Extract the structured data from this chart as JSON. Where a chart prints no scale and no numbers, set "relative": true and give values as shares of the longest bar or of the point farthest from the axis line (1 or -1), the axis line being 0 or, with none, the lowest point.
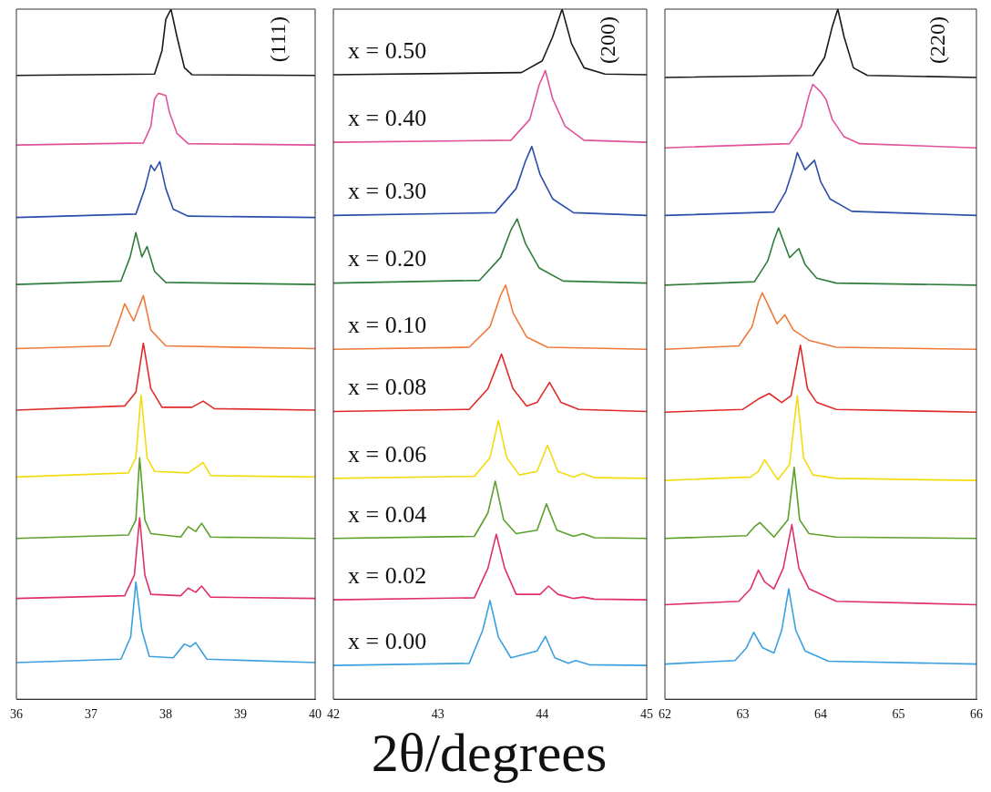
{
  "chart_data": [
    {
      "type": "line",
      "relative": true,
      "xlim": [
        36,
        40
      ],
      "xticks": [
        36,
        37,
        38,
        39,
        40
      ],
      "grid": false,
      "legend": false,
      "marker": "none",
      "line_style": "solid",
      "annotations": [
        "(111)"
      ],
      "series": [
        {
          "color": "#1a1a1a",
          "x": [
            36,
            37.85,
            37.95,
            38.0,
            38.07,
            38.15,
            38.25,
            38.35,
            40
          ],
          "values": [
            0.904,
            0.906,
            0.94,
            0.985,
            1.0,
            0.96,
            0.915,
            0.905,
            0.904
          ]
        },
        {
          "color": "#e0529a",
          "x": [
            36,
            37.7,
            37.8,
            37.85,
            37.9,
            38.0,
            38.05,
            38.15,
            38.3,
            40
          ],
          "values": [
            0.803,
            0.806,
            0.83,
            0.87,
            0.878,
            0.875,
            0.85,
            0.82,
            0.805,
            0.803
          ]
        },
        {
          "color": "#2a4fa8",
          "x": [
            36,
            37.6,
            37.72,
            37.8,
            37.85,
            37.92,
            38.0,
            38.1,
            38.3,
            40
          ],
          "values": [
            0.698,
            0.703,
            0.74,
            0.774,
            0.766,
            0.779,
            0.74,
            0.71,
            0.7,
            0.698
          ]
        },
        {
          "color": "#2e7d3a",
          "x": [
            36,
            37.4,
            37.52,
            37.6,
            37.68,
            37.75,
            37.85,
            38.0,
            40
          ],
          "values": [
            0.601,
            0.606,
            0.64,
            0.676,
            0.641,
            0.656,
            0.62,
            0.604,
            0.601
          ]
        },
        {
          "color": "#f07a3a",
          "x": [
            36,
            37.25,
            37.38,
            37.45,
            37.57,
            37.7,
            37.8,
            38.0,
            40
          ],
          "values": [
            0.508,
            0.512,
            0.55,
            0.573,
            0.548,
            0.585,
            0.535,
            0.512,
            0.508
          ]
        },
        {
          "color": "#e02a2a",
          "x": [
            36,
            37.45,
            37.6,
            37.7,
            37.8,
            37.95,
            38.35,
            38.5,
            38.65,
            40
          ],
          "values": [
            0.419,
            0.425,
            0.445,
            0.516,
            0.45,
            0.423,
            0.423,
            0.432,
            0.421,
            0.419
          ]
        },
        {
          "color": "#f2dc10",
          "x": [
            36,
            37.5,
            37.6,
            37.67,
            37.75,
            37.85,
            38.3,
            38.5,
            38.6,
            40
          ],
          "values": [
            0.322,
            0.328,
            0.35,
            0.441,
            0.35,
            0.33,
            0.328,
            0.343,
            0.324,
            0.322
          ]
        },
        {
          "color": "#5aa02a",
          "x": [
            36,
            37.5,
            37.6,
            37.65,
            37.72,
            37.8,
            38.2,
            38.3,
            38.4,
            38.48,
            38.6,
            40
          ],
          "values": [
            0.233,
            0.238,
            0.26,
            0.35,
            0.26,
            0.24,
            0.235,
            0.25,
            0.243,
            0.255,
            0.235,
            0.233
          ]
        },
        {
          "color": "#e0306a",
          "x": [
            36,
            37.45,
            37.58,
            37.65,
            37.72,
            37.8,
            38.2,
            38.3,
            38.4,
            38.48,
            38.6,
            40
          ],
          "values": [
            0.146,
            0.15,
            0.18,
            0.263,
            0.18,
            0.152,
            0.15,
            0.161,
            0.155,
            0.164,
            0.148,
            0.146
          ]
        },
        {
          "color": "#3aa0e0",
          "x": [
            36,
            37.4,
            37.53,
            37.6,
            37.68,
            37.78,
            38.1,
            38.25,
            38.33,
            38.4,
            38.55,
            40
          ],
          "values": [
            0.053,
            0.058,
            0.09,
            0.17,
            0.1,
            0.062,
            0.06,
            0.08,
            0.076,
            0.082,
            0.058,
            0.053
          ]
        }
      ]
    },
    {
      "type": "line",
      "relative": true,
      "xlim": [
        42,
        45
      ],
      "xticks": [
        42,
        43,
        44,
        45
      ],
      "grid": false,
      "legend": false,
      "marker": "none",
      "line_style": "solid",
      "xlabel": "2θ/degrees",
      "annotations": [
        "(200)"
      ],
      "series": [
        {
          "name": "x = 0.50",
          "color": "#1a1a1a",
          "x": [
            42,
            43.8,
            44.0,
            44.1,
            44.19,
            44.28,
            44.4,
            44.6,
            45
          ],
          "values": [
            0.905,
            0.908,
            0.925,
            0.96,
            1.0,
            0.95,
            0.915,
            0.906,
            0.905
          ]
        },
        {
          "name": "x = 0.40",
          "color": "#e0529a",
          "x": [
            42,
            43.7,
            43.88,
            43.97,
            44.03,
            44.1,
            44.22,
            44.4,
            45
          ],
          "values": [
            0.807,
            0.81,
            0.84,
            0.89,
            0.911,
            0.87,
            0.83,
            0.81,
            0.807
          ]
        },
        {
          "name": "x = 0.30",
          "color": "#2a4fa8",
          "x": [
            42,
            43.55,
            43.75,
            43.84,
            43.9,
            43.98,
            44.1,
            44.3,
            45
          ],
          "values": [
            0.701,
            0.705,
            0.74,
            0.78,
            0.801,
            0.76,
            0.725,
            0.705,
            0.701
          ]
        },
        {
          "name": "x = 0.20",
          "color": "#2e7d3a",
          "x": [
            42,
            43.4,
            43.6,
            43.7,
            43.76,
            43.84,
            43.97,
            44.2,
            45
          ],
          "values": [
            0.603,
            0.607,
            0.64,
            0.68,
            0.696,
            0.66,
            0.625,
            0.606,
            0.603
          ]
        },
        {
          "name": "x = 0.10",
          "color": "#f07a3a",
          "x": [
            42,
            43.3,
            43.5,
            43.6,
            43.65,
            43.72,
            43.85,
            44.05,
            45
          ],
          "values": [
            0.507,
            0.51,
            0.54,
            0.585,
            0.6,
            0.56,
            0.525,
            0.51,
            0.507
          ]
        },
        {
          "name": "x = 0.08",
          "color": "#e02a2a",
          "x": [
            42,
            43.3,
            43.48,
            43.61,
            43.72,
            43.85,
            43.95,
            44.07,
            44.18,
            44.35,
            45
          ],
          "values": [
            0.417,
            0.42,
            0.45,
            0.5,
            0.45,
            0.425,
            0.43,
            0.459,
            0.43,
            0.42,
            0.417
          ]
        },
        {
          "name": "x = 0.06",
          "color": "#f2dc10",
          "x": [
            42,
            43.35,
            43.5,
            43.58,
            43.66,
            43.78,
            43.95,
            44.05,
            44.15,
            44.3,
            44.39,
            44.5,
            45
          ],
          "values": [
            0.32,
            0.323,
            0.35,
            0.404,
            0.35,
            0.325,
            0.33,
            0.368,
            0.33,
            0.322,
            0.327,
            0.321,
            0.32
          ]
        },
        {
          "name": "x = 0.04",
          "color": "#5aa02a",
          "x": [
            42,
            43.35,
            43.48,
            43.55,
            43.63,
            43.75,
            43.95,
            44.04,
            44.14,
            44.3,
            44.39,
            44.5,
            45
          ],
          "values": [
            0.233,
            0.236,
            0.27,
            0.316,
            0.26,
            0.24,
            0.245,
            0.283,
            0.245,
            0.236,
            0.24,
            0.234,
            0.233
          ]
        },
        {
          "name": "x = 0.02",
          "color": "#e0306a",
          "x": [
            42,
            43.35,
            43.48,
            43.56,
            43.64,
            43.75,
            43.98,
            44.06,
            44.15,
            44.3,
            44.39,
            44.5,
            45
          ],
          "values": [
            0.144,
            0.147,
            0.19,
            0.239,
            0.19,
            0.152,
            0.152,
            0.164,
            0.152,
            0.146,
            0.148,
            0.145,
            0.144
          ]
        },
        {
          "name": "x = 0.00",
          "color": "#3aa0e0",
          "x": [
            42,
            43.3,
            43.43,
            43.5,
            43.58,
            43.7,
            43.95,
            44.03,
            44.12,
            44.25,
            44.32,
            44.45,
            45
          ],
          "values": [
            0.049,
            0.052,
            0.1,
            0.143,
            0.09,
            0.06,
            0.07,
            0.091,
            0.06,
            0.052,
            0.056,
            0.05,
            0.049
          ]
        }
      ]
    },
    {
      "type": "line",
      "relative": true,
      "xlim": [
        62,
        66
      ],
      "xticks": [
        62,
        63,
        64,
        65,
        66
      ],
      "grid": false,
      "legend": false,
      "marker": "none",
      "line_style": "solid",
      "annotations": [
        "(220)"
      ],
      "series": [
        {
          "color": "#1a1a1a",
          "x": [
            62,
            63.9,
            64.05,
            64.15,
            64.22,
            64.3,
            64.42,
            64.6,
            66
          ],
          "values": [
            0.901,
            0.904,
            0.93,
            0.975,
            1.0,
            0.96,
            0.915,
            0.904,
            0.901
          ]
        },
        {
          "color": "#e0529a",
          "x": [
            62,
            63.6,
            63.75,
            63.85,
            63.9,
            64.0,
            64.07,
            64.15,
            64.3,
            64.5,
            66
          ],
          "values": [
            0.799,
            0.805,
            0.83,
            0.875,
            0.891,
            0.88,
            0.869,
            0.84,
            0.815,
            0.805,
            0.799
          ]
        },
        {
          "color": "#2a4fa8",
          "x": [
            62,
            63.4,
            63.55,
            63.65,
            63.7,
            63.8,
            63.92,
            64.0,
            64.12,
            64.4,
            66
          ],
          "values": [
            0.701,
            0.706,
            0.735,
            0.77,
            0.792,
            0.767,
            0.781,
            0.75,
            0.725,
            0.707,
            0.701
          ]
        },
        {
          "color": "#2e7d3a",
          "x": [
            62,
            63.15,
            63.32,
            63.4,
            63.46,
            63.6,
            63.72,
            63.8,
            63.95,
            64.2,
            66
          ],
          "values": [
            0.6,
            0.605,
            0.635,
            0.665,
            0.683,
            0.64,
            0.653,
            0.63,
            0.61,
            0.603,
            0.6
          ]
        },
        {
          "color": "#f07a3a",
          "x": [
            62,
            62.95,
            63.12,
            63.2,
            63.25,
            63.44,
            63.54,
            63.65,
            63.85,
            64.2,
            66
          ],
          "values": [
            0.507,
            0.512,
            0.54,
            0.575,
            0.589,
            0.544,
            0.557,
            0.535,
            0.52,
            0.51,
            0.507
          ]
        },
        {
          "color": "#e02a2a",
          "x": [
            62,
            63.0,
            63.2,
            63.34,
            63.5,
            63.62,
            63.74,
            63.83,
            63.95,
            64.2,
            66
          ],
          "values": [
            0.416,
            0.42,
            0.435,
            0.443,
            0.43,
            0.44,
            0.513,
            0.45,
            0.43,
            0.42,
            0.416
          ]
        },
        {
          "color": "#f2dc10",
          "x": [
            62,
            63.1,
            63.2,
            63.28,
            63.45,
            63.6,
            63.7,
            63.78,
            63.9,
            64.2,
            66
          ],
          "values": [
            0.317,
            0.322,
            0.33,
            0.347,
            0.318,
            0.34,
            0.44,
            0.35,
            0.325,
            0.32,
            0.317
          ]
        },
        {
          "color": "#5aa02a",
          "x": [
            62,
            63.05,
            63.15,
            63.22,
            63.4,
            63.58,
            63.66,
            63.73,
            63.85,
            64.2,
            66
          ],
          "values": [
            0.233,
            0.237,
            0.25,
            0.256,
            0.235,
            0.26,
            0.336,
            0.26,
            0.24,
            0.235,
            0.233
          ]
        },
        {
          "color": "#e0306a",
          "x": [
            62,
            62.95,
            63.1,
            63.2,
            63.28,
            63.4,
            63.52,
            63.63,
            63.72,
            63.85,
            64.2,
            66
          ],
          "values": [
            0.137,
            0.142,
            0.16,
            0.187,
            0.17,
            0.16,
            0.19,
            0.253,
            0.19,
            0.16,
            0.142,
            0.137
          ]
        },
        {
          "color": "#3aa0e0",
          "x": [
            62,
            62.9,
            63.05,
            63.14,
            63.25,
            63.4,
            63.5,
            63.59,
            63.68,
            63.8,
            64.1,
            66
          ],
          "values": [
            0.051,
            0.056,
            0.075,
            0.097,
            0.075,
            0.067,
            0.1,
            0.16,
            0.1,
            0.07,
            0.055,
            0.051
          ]
        }
      ]
    }
  ]
}
